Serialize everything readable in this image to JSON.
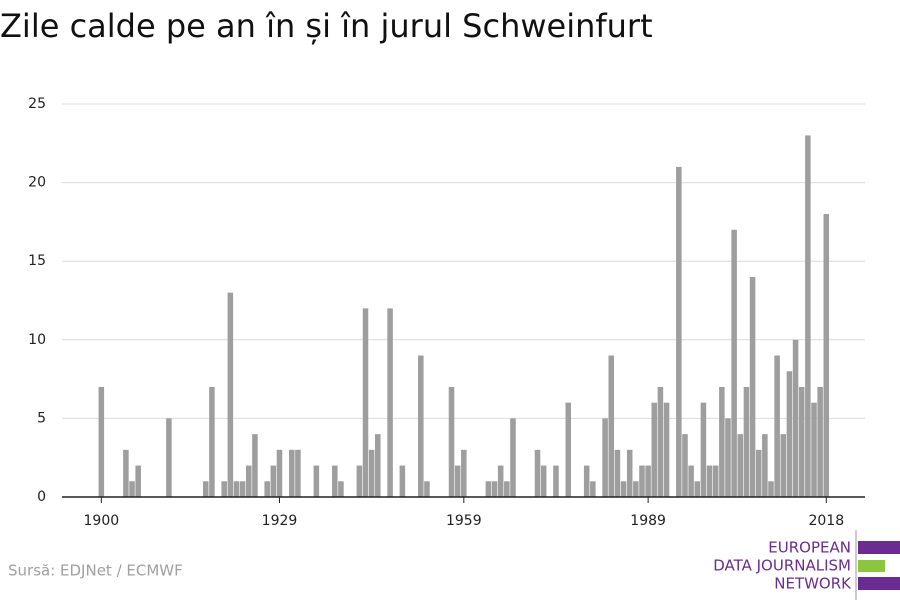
{
  "chart_data": {
    "type": "bar",
    "title": "Zile calde pe an în și în jurul Schweinfurt",
    "x": [
      1900,
      1901,
      1902,
      1903,
      1904,
      1905,
      1906,
      1907,
      1908,
      1909,
      1910,
      1911,
      1912,
      1913,
      1914,
      1915,
      1916,
      1917,
      1918,
      1919,
      1920,
      1921,
      1922,
      1923,
      1924,
      1925,
      1926,
      1927,
      1928,
      1929,
      1930,
      1931,
      1932,
      1933,
      1934,
      1935,
      1936,
      1937,
      1938,
      1939,
      1940,
      1941,
      1942,
      1943,
      1944,
      1945,
      1946,
      1947,
      1948,
      1949,
      1950,
      1951,
      1952,
      1953,
      1954,
      1955,
      1956,
      1957,
      1958,
      1959,
      1960,
      1961,
      1962,
      1963,
      1964,
      1965,
      1966,
      1967,
      1968,
      1969,
      1970,
      1971,
      1972,
      1973,
      1974,
      1975,
      1976,
      1977,
      1978,
      1979,
      1980,
      1981,
      1982,
      1983,
      1984,
      1985,
      1986,
      1987,
      1988,
      1989,
      1990,
      1991,
      1992,
      1993,
      1994,
      1995,
      1996,
      1997,
      1998,
      1999,
      2000,
      2001,
      2002,
      2003,
      2004,
      2005,
      2006,
      2007,
      2008,
      2009,
      2010,
      2011,
      2012,
      2013,
      2014,
      2015,
      2016,
      2017,
      2018
    ],
    "values": [
      7,
      0,
      0,
      0,
      3,
      1,
      2,
      0,
      0,
      0,
      0,
      5,
      0,
      0,
      0,
      0,
      0,
      1,
      7,
      0,
      1,
      13,
      1,
      1,
      2,
      4,
      0,
      1,
      2,
      3,
      0,
      3,
      3,
      0,
      0,
      2,
      0,
      0,
      2,
      1,
      0,
      0,
      2,
      12,
      3,
      4,
      0,
      12,
      0,
      2,
      0,
      0,
      9,
      1,
      0,
      0,
      0,
      7,
      2,
      3,
      0,
      0,
      0,
      1,
      1,
      2,
      1,
      5,
      0,
      0,
      0,
      3,
      2,
      0,
      2,
      0,
      6,
      0,
      0,
      2,
      1,
      0,
      5,
      9,
      3,
      1,
      3,
      1,
      2,
      2,
      6,
      7,
      6,
      0,
      21,
      4,
      2,
      1,
      6,
      2,
      2,
      7,
      5,
      17,
      4,
      7,
      14,
      3,
      4,
      1,
      9,
      4,
      8,
      10,
      7,
      23,
      6,
      7,
      18
    ],
    "color": "#9e9e9e",
    "xlim": [
      1893.6,
      2024.3
    ],
    "xticks": [
      1900,
      1929,
      1959,
      1989,
      2018
    ],
    "ylim": [
      0,
      25
    ],
    "yticks": [
      0,
      5,
      10,
      15,
      20,
      25
    ],
    "grid": true,
    "source": "Sursă: EDJNet / ECMWF"
  },
  "logo": {
    "lines": [
      "EUROPEAN",
      "DATA JOURNALISM",
      "NETWORK"
    ]
  }
}
